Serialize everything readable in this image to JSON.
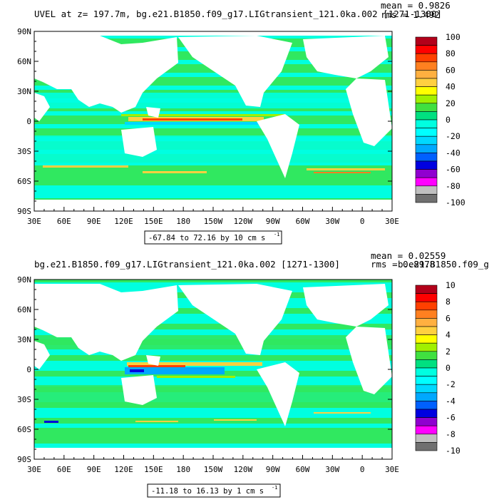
{
  "chart_data": [
    {
      "type": "heatmap",
      "title": "UVEL at z= 197.7m, bg.e21.B1850.f09_g17.LIGtransient_121.0ka.002 [1271-1300]",
      "stats": {
        "mean": "mean = 0.9826",
        "rms": "rms = 1.492"
      },
      "range_note": "-67.84 to 72.16 by 10 cm s",
      "range_unit_exp": "-1",
      "x_ticks": [
        "30E",
        "60E",
        "90E",
        "120E",
        "150E",
        "180",
        "150W",
        "120W",
        "90W",
        "60W",
        "30W",
        "0",
        "30E"
      ],
      "y_ticks": [
        "90N",
        "60N",
        "30N",
        "0",
        "30S",
        "60S",
        "90S"
      ],
      "colorbar_labels": [
        "100",
        "80",
        "60",
        "40",
        "20",
        "0",
        "-20",
        "-40",
        "-60",
        "-80",
        "-100"
      ],
      "colorbar_colors": [
        "#b3001a",
        "#ff0000",
        "#ff4000",
        "#ff8020",
        "#ffb040",
        "#ffd040",
        "#ffff00",
        "#a0f000",
        "#40e040",
        "#00e080",
        "#00ffe0",
        "#00ffff",
        "#00d8ff",
        "#00a8ff",
        "#0060ff",
        "#0000e0",
        "#9000d0",
        "#ff00ff",
        "#c0c0c0",
        "#707070"
      ],
      "ylim": [
        -90,
        90
      ]
    },
    {
      "type": "heatmap",
      "title": "bg.e21.B1850.f09_g17.LIGtransient_121.0ka.002 [1271-1300]",
      "overlap_text": "b.e21.B1850.f09_g",
      "stats": {
        "mean": "mean = 0.02559",
        "rms": "rms = 0.8978"
      },
      "range_note": "-11.18 to 16.13 by 1 cm s",
      "range_unit_exp": "-1",
      "x_ticks": [
        "30E",
        "60E",
        "90E",
        "120E",
        "150E",
        "180",
        "150W",
        "120W",
        "90W",
        "60W",
        "30W",
        "0",
        "30E"
      ],
      "y_ticks": [
        "90N",
        "60N",
        "30N",
        "0",
        "30S",
        "60S",
        "90S"
      ],
      "colorbar_labels": [
        "10",
        "8",
        "6",
        "4",
        "2",
        "0",
        "-2",
        "-4",
        "-6",
        "-8",
        "-10"
      ],
      "colorbar_colors": [
        "#b3001a",
        "#ff0000",
        "#ff4000",
        "#ff8020",
        "#ffb040",
        "#ffd040",
        "#ffff00",
        "#a0f000",
        "#40e040",
        "#00e080",
        "#00ffe0",
        "#00ffff",
        "#00d8ff",
        "#00a8ff",
        "#0060ff",
        "#0000e0",
        "#9000d0",
        "#ff00ff",
        "#c0c0c0",
        "#707070"
      ],
      "ylim": [
        -90,
        90
      ]
    }
  ]
}
